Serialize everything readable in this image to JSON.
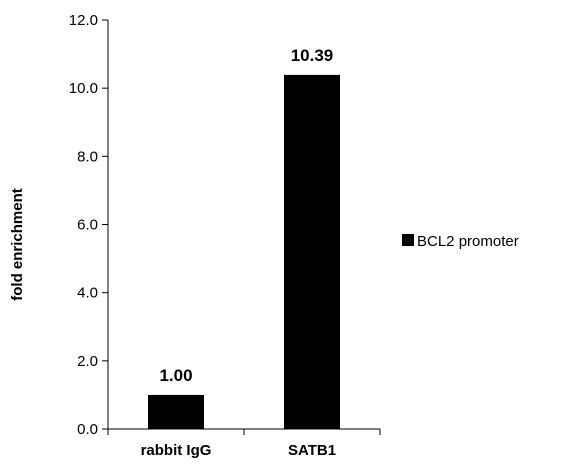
{
  "chart_data": {
    "type": "bar",
    "categories": [
      "rabbit IgG",
      "SATB1"
    ],
    "series": [
      {
        "name": "BCL2 promoter",
        "values": [
          1.0,
          10.39
        ],
        "data_labels": [
          "1.00",
          "10.39"
        ],
        "color": "#000000"
      }
    ],
    "xlabel": "",
    "ylabel": "fold enrichment",
    "ylim": [
      0,
      12
    ],
    "yticks": [
      0,
      2,
      4,
      6,
      8,
      10,
      12
    ],
    "ytick_labels": [
      "0.0",
      "2.0",
      "4.0",
      "6.0",
      "8.0",
      "10.0",
      "12.0"
    ],
    "grid": false,
    "legend_position": "right"
  }
}
